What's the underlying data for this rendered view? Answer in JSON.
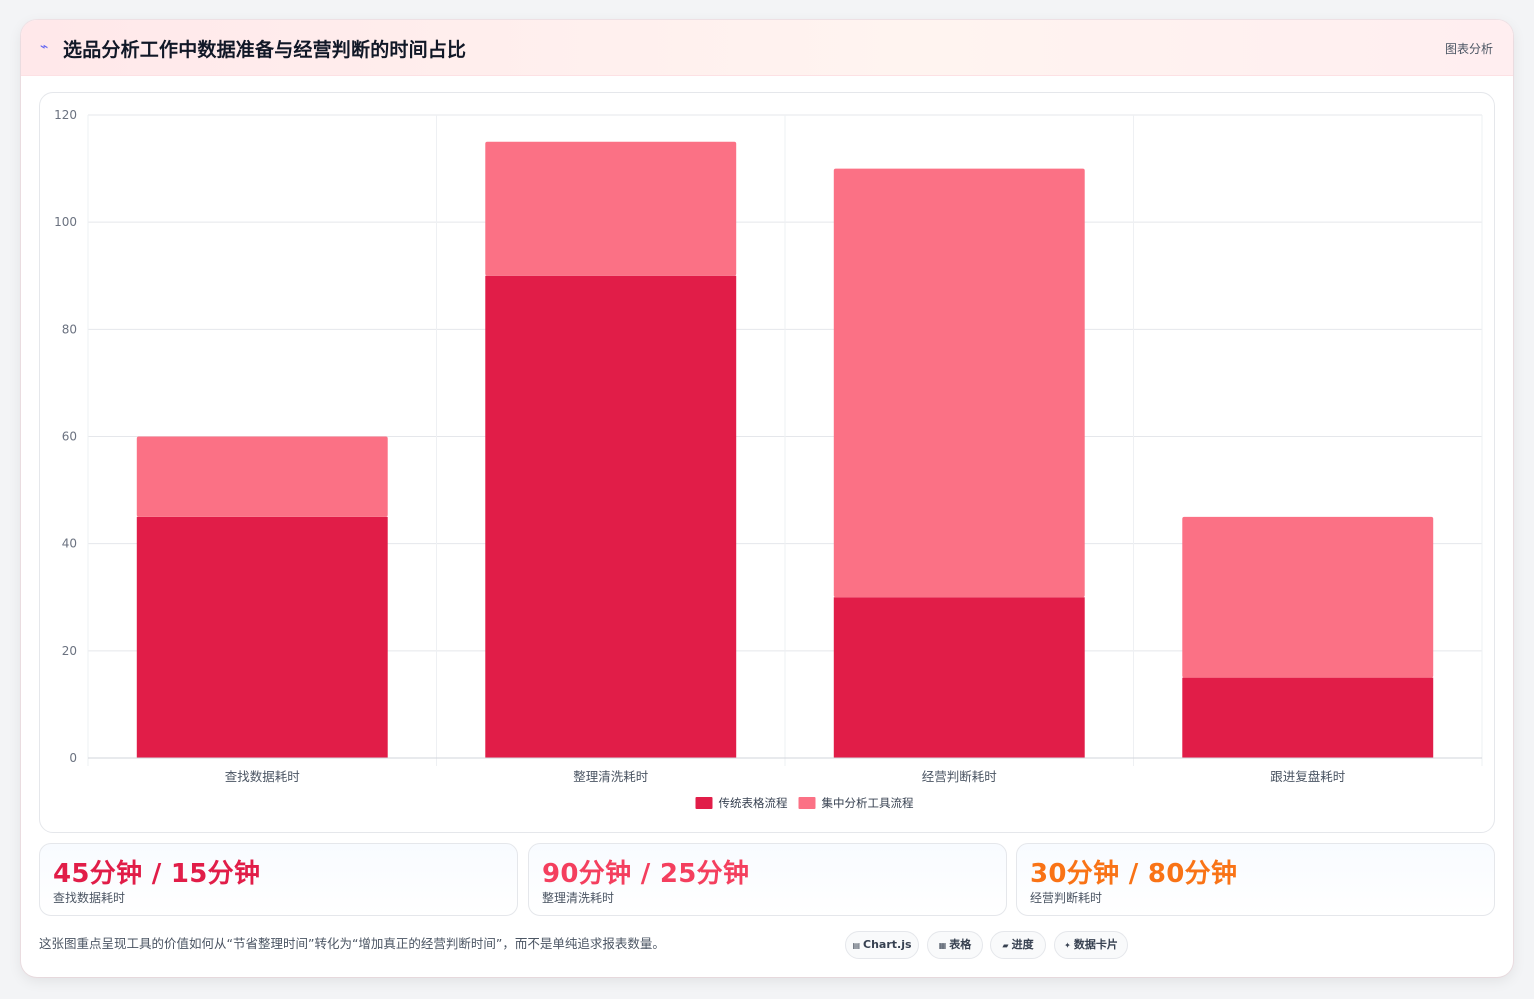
{
  "header": {
    "icon": "sparkline-icon",
    "title": "选品分析工作中数据准备与经营判断的时间占比",
    "tag": "图表分析"
  },
  "chart_data": {
    "type": "bar",
    "stacked": true,
    "categories": [
      "查找数据耗时",
      "整理清洗耗时",
      "经营判断耗时",
      "跟进复盘耗时"
    ],
    "series": [
      {
        "name": "传统表格流程",
        "values": [
          45,
          90,
          30,
          15
        ],
        "color": "#e11d48"
      },
      {
        "name": "集中分析工具流程",
        "values": [
          15,
          25,
          80,
          30
        ],
        "color": "#fb7185"
      }
    ],
    "ylim": [
      0,
      120
    ],
    "yticks": [
      0,
      20,
      40,
      60,
      80,
      100,
      120
    ],
    "grid": true,
    "legend": "bottom-center"
  },
  "stats": [
    {
      "value": "45分钟 / 15分钟",
      "label": "查找数据耗时",
      "color": "#e11d48"
    },
    {
      "value": "90分钟 / 25分钟",
      "label": "整理清洗耗时",
      "color": "#f43f5e"
    },
    {
      "value": "30分钟 / 80分钟",
      "label": "经营判断耗时",
      "color": "#f97316"
    }
  ],
  "footer": {
    "text": "这张图重点呈现工具的价值如何从“节省整理时间”转化为“增加真正的经营判断时间”，而不是单纯追求报表数量。",
    "chips": [
      {
        "label": "Chart.js",
        "icon": "chart-icon",
        "glyph": "▤"
      },
      {
        "label": "表格",
        "icon": "table-icon",
        "glyph": "▦"
      },
      {
        "label": "进度",
        "icon": "progress-icon",
        "glyph": "▰"
      },
      {
        "label": "数据卡片",
        "icon": "sparkle-icon",
        "glyph": "✦"
      }
    ]
  }
}
